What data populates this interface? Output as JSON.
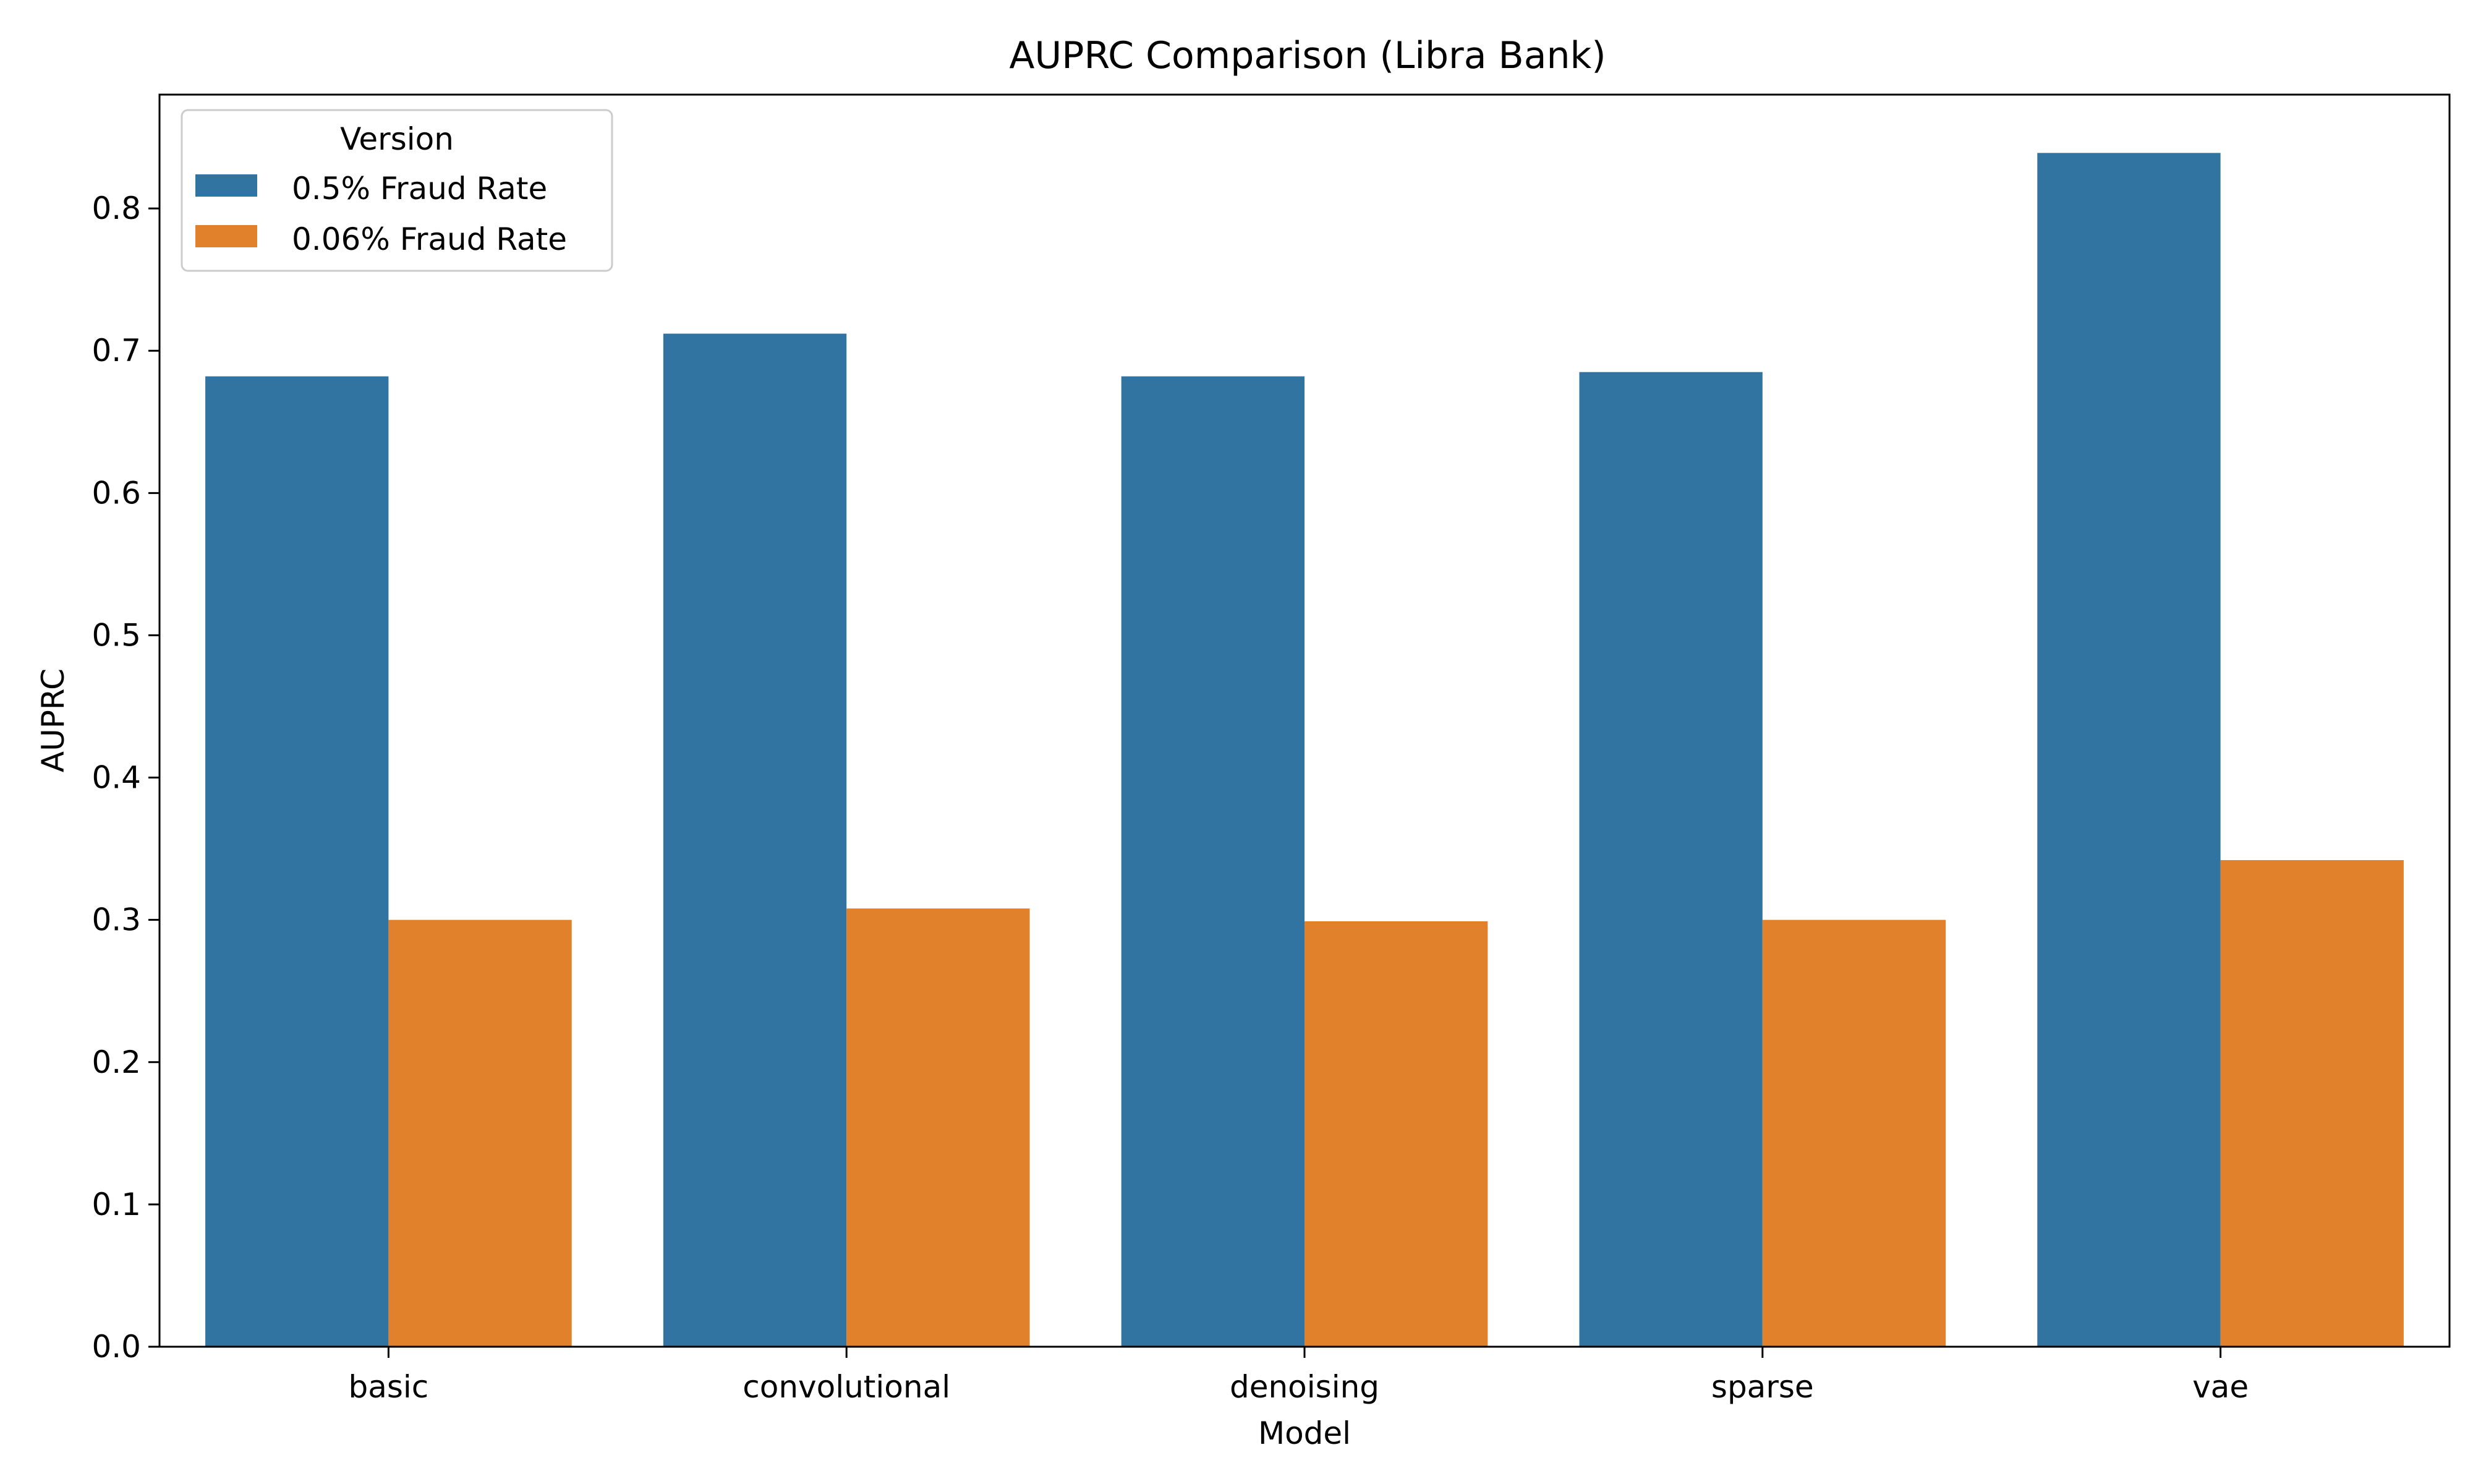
{
  "chart_data": {
    "type": "bar",
    "title": "AUPRC Comparison (Libra Bank)",
    "xlabel": "Model",
    "ylabel": "AUPRC",
    "categories": [
      "basic",
      "convolutional",
      "denoising",
      "sparse",
      "vae"
    ],
    "series": [
      {
        "name": "0.5% Fraud Rate",
        "color": "#3274a1",
        "values": [
          0.682,
          0.712,
          0.682,
          0.685,
          0.839
        ]
      },
      {
        "name": "0.06% Fraud Rate",
        "color": "#e1812c",
        "values": [
          0.3,
          0.308,
          0.299,
          0.3,
          0.342
        ]
      }
    ],
    "ylim": [
      0,
      0.88
    ],
    "yticks": [
      0.0,
      0.1,
      0.2,
      0.3,
      0.4,
      0.5,
      0.6,
      0.7,
      0.8
    ],
    "ytick_labels": [
      "0.0",
      "0.1",
      "0.2",
      "0.3",
      "0.4",
      "0.5",
      "0.6",
      "0.7",
      "0.8"
    ],
    "grid": false,
    "legend": {
      "title": "Version",
      "placement": "top-left"
    }
  }
}
